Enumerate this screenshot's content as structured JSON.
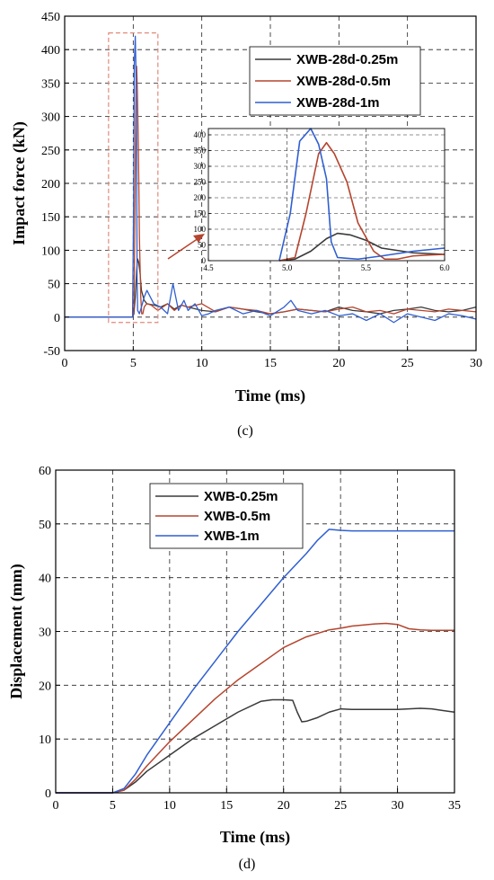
{
  "chart_data": [
    {
      "id": "c",
      "type": "line",
      "caption": "(c)",
      "xlabel": "Time (ms)",
      "ylabel": "Impact force (kN)",
      "xlim": [
        0,
        30
      ],
      "ylim": [
        -50,
        450
      ],
      "xticks": [
        0,
        5,
        10,
        15,
        20,
        25,
        30
      ],
      "yticks": [
        -50,
        0,
        50,
        100,
        150,
        200,
        250,
        300,
        350,
        400,
        450
      ],
      "grid": "dashed",
      "legend_position": "top-right",
      "series": [
        {
          "name": "XWB-28d-0.25m",
          "color": "#3a3a3a",
          "x": [
            0,
            4.95,
            5.05,
            5.15,
            5.25,
            5.32,
            5.4,
            5.5,
            5.6,
            5.8,
            6.0,
            6.5,
            7,
            7.5,
            8,
            8.5,
            9,
            10,
            11,
            12,
            13,
            14,
            15,
            16,
            17,
            18,
            19,
            20,
            21,
            22,
            23,
            24,
            25,
            26,
            27,
            28,
            29,
            30
          ],
          "y": [
            0,
            0,
            5,
            30,
            70,
            87,
            82,
            65,
            40,
            25,
            20,
            18,
            15,
            20,
            12,
            18,
            15,
            10,
            8,
            15,
            12,
            8,
            5,
            8,
            12,
            10,
            8,
            15,
            10,
            8,
            5,
            10,
            12,
            15,
            10,
            8,
            10,
            15
          ]
        },
        {
          "name": "XWB-28d-0.5m",
          "color": "#b5452e",
          "x": [
            0,
            4.95,
            5.05,
            5.12,
            5.2,
            5.25,
            5.3,
            5.38,
            5.45,
            5.55,
            5.62,
            5.7,
            5.8,
            5.9,
            6.0,
            6.3,
            6.8,
            7.5,
            8,
            8.5,
            9,
            10,
            11,
            12,
            13,
            14,
            15,
            16,
            17,
            18,
            19,
            20,
            21,
            22,
            23,
            24,
            25,
            26,
            27,
            28,
            29,
            30
          ],
          "y": [
            0,
            0,
            10,
            150,
            340,
            375,
            340,
            250,
            120,
            30,
            5,
            5,
            15,
            18,
            20,
            18,
            10,
            20,
            10,
            18,
            15,
            20,
            8,
            15,
            12,
            10,
            5,
            8,
            12,
            10,
            8,
            12,
            15,
            8,
            10,
            5,
            12,
            10,
            8,
            12,
            10,
            8
          ]
        },
        {
          "name": "XWB-28d-1m",
          "color": "#2f5fd0",
          "x": [
            0,
            4.95,
            5.02,
            5.08,
            5.15,
            5.2,
            5.25,
            5.28,
            5.32,
            5.45,
            5.6,
            5.8,
            6.0,
            6.5,
            7,
            7.5,
            7.9,
            8.3,
            8.7,
            9,
            9.5,
            10,
            10.5,
            11,
            12,
            13,
            14,
            15,
            16,
            16.5,
            17,
            18,
            19,
            20,
            21,
            22,
            23,
            24,
            25,
            26,
            27,
            28,
            29,
            30
          ],
          "y": [
            0,
            0,
            150,
            380,
            420,
            370,
            260,
            60,
            10,
            5,
            15,
            30,
            40,
            20,
            15,
            5,
            50,
            10,
            25,
            10,
            20,
            2,
            5,
            10,
            15,
            5,
            10,
            2,
            15,
            25,
            10,
            5,
            10,
            2,
            5,
            -5,
            5,
            -8,
            5,
            0,
            -5,
            5,
            2,
            -3
          ]
        }
      ],
      "inset": {
        "xlim": [
          4.5,
          6.0
        ],
        "ylim": [
          0,
          420
        ],
        "xticks": [
          4.5,
          5.0,
          5.5,
          6.0
        ],
        "xtick_labels": [
          "4.5",
          "5.0",
          "5.5",
          "6.0"
        ],
        "yticks": [
          0,
          50,
          100,
          150,
          200,
          250,
          300,
          350,
          400
        ]
      }
    },
    {
      "id": "d",
      "type": "line",
      "caption": "(d)",
      "xlabel": "Time (ms)",
      "ylabel": "Displacement (mm)",
      "xlim": [
        0,
        35
      ],
      "ylim": [
        0,
        60
      ],
      "xticks": [
        0,
        5,
        10,
        15,
        20,
        25,
        30,
        35
      ],
      "yticks": [
        0,
        10,
        20,
        30,
        40,
        50,
        60
      ],
      "grid": "dashed",
      "legend_position": "top-left",
      "series": [
        {
          "name": "XWB-0.25m",
          "color": "#3a3a3a",
          "x": [
            0,
            5,
            6,
            7,
            8,
            10,
            12,
            14,
            16,
            18,
            19,
            20,
            20.8,
            21.2,
            21.6,
            22,
            23,
            24,
            25,
            26,
            28,
            30,
            32,
            33,
            34,
            35
          ],
          "y": [
            0,
            0,
            0.5,
            2,
            4,
            7,
            10,
            12.5,
            15,
            17,
            17.3,
            17.3,
            17.2,
            15,
            13.2,
            13.3,
            14,
            15,
            15.6,
            15.5,
            15.5,
            15.5,
            15.7,
            15.6,
            15.3,
            15
          ]
        },
        {
          "name": "XWB-0.5m",
          "color": "#b5452e",
          "x": [
            0,
            5,
            6,
            7,
            8,
            10,
            12,
            14,
            16,
            18,
            20,
            22,
            24,
            25,
            26,
            28,
            29,
            30,
            31,
            32,
            33,
            34,
            35
          ],
          "y": [
            0,
            0,
            0.5,
            2.5,
            5,
            9.5,
            13.5,
            17.5,
            21,
            24,
            27,
            29,
            30.3,
            30.6,
            31,
            31.4,
            31.5,
            31.3,
            30.5,
            30.3,
            30.2,
            30.2,
            30.2
          ]
        },
        {
          "name": "XWB-1m",
          "color": "#2f5fd0",
          "x": [
            0,
            5,
            6,
            7,
            8,
            10,
            12,
            14,
            16,
            18,
            20,
            22,
            23,
            24,
            25,
            26,
            28,
            30,
            32,
            34,
            35
          ],
          "y": [
            0,
            0,
            0.8,
            3.5,
            7,
            13,
            19,
            24.5,
            30,
            35,
            40,
            44.5,
            47,
            49,
            48.8,
            48.7,
            48.7,
            48.7,
            48.7,
            48.7,
            48.7
          ]
        }
      ]
    }
  ]
}
